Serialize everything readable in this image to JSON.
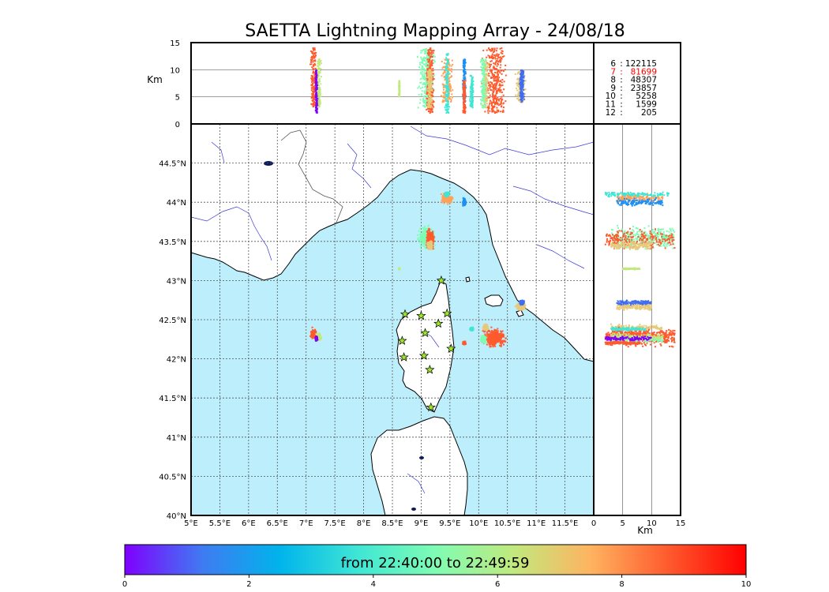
{
  "chart_data": {
    "type": "scatter",
    "title": "SAETTA Lightning Mapping Array - 24/08/18",
    "time_range_text": "from 22:40:00 to 22:49:59",
    "map": {
      "lon_range": [
        5,
        12
      ],
      "lat_range": [
        40,
        45
      ],
      "lon_ticks": [
        "5°E",
        "5.5°E",
        "6°E",
        "6.5°E",
        "7°E",
        "7.5°E",
        "8°E",
        "8.5°E",
        "9°E",
        "9.5°E",
        "10°E",
        "10.5°E",
        "11°E",
        "11.5°E"
      ],
      "lat_ticks": [
        "40°N",
        "40.5°N",
        "41°N",
        "41.5°N",
        "42°N",
        "42.5°N",
        "43°N",
        "43.5°N",
        "44°N",
        "44.5°N"
      ],
      "grid": true,
      "sea_color": "#bdeefc",
      "land_color": "#ffffff",
      "river_color": "#3b3bd8",
      "station_color": "#9be82a"
    },
    "altitude_top": {
      "ylabel": "Km",
      "ylim": [
        0,
        15
      ],
      "yticks": [
        "0",
        "5",
        "10",
        "15"
      ]
    },
    "altitude_side": {
      "xlabel": "Km",
      "xlim": [
        0,
        15
      ],
      "xticks": [
        "0",
        "5",
        "10",
        "15"
      ]
    },
    "legend": [
      {
        "num": "6",
        "sep": ":",
        "count": "122115",
        "color": "#000000"
      },
      {
        "num": "7",
        "sep": ":",
        "count": "81699",
        "color": "#ff0000"
      },
      {
        "num": "8",
        "sep": ":",
        "count": "48307",
        "color": "#000000"
      },
      {
        "num": "9",
        "sep": ":",
        "count": "23857",
        "color": "#000000"
      },
      {
        "num": "10",
        "sep": ":",
        "count": "5258",
        "color": "#000000"
      },
      {
        "num": "11",
        "sep": ":",
        "count": "1599",
        "color": "#000000"
      },
      {
        "num": "12",
        "sep": ":",
        "count": "205",
        "color": "#000000"
      }
    ],
    "colorbar": {
      "min": 0,
      "max": 10,
      "ticks": [
        "0",
        "2",
        "4",
        "6",
        "8",
        "10"
      ],
      "colors": [
        "#7f00ff",
        "#3f7bf2",
        "#00b4eb",
        "#3fe6d5",
        "#7ffcb3",
        "#c0e97e",
        "#ffb360",
        "#ff5a2d",
        "#ff0000"
      ]
    },
    "stations": [
      {
        "lon": 9.35,
        "lat": 43.0
      },
      {
        "lon": 8.72,
        "lat": 42.57
      },
      {
        "lon": 9.0,
        "lat": 42.55
      },
      {
        "lon": 9.45,
        "lat": 42.58
      },
      {
        "lon": 9.3,
        "lat": 42.45
      },
      {
        "lon": 9.07,
        "lat": 42.33
      },
      {
        "lon": 8.67,
        "lat": 42.23
      },
      {
        "lon": 9.52,
        "lat": 42.13
      },
      {
        "lon": 8.7,
        "lat": 42.02
      },
      {
        "lon": 9.05,
        "lat": 42.04
      },
      {
        "lon": 9.15,
        "lat": 41.86
      },
      {
        "lon": 9.17,
        "lat": 41.38
      }
    ],
    "clusters": [
      {
        "lon": 9.1,
        "lat": 43.55,
        "rlon": 0.15,
        "rlat": 0.15,
        "alt": [
          3,
          14
        ],
        "color": "#7ffcb3"
      },
      {
        "lon": 9.15,
        "lat": 43.52,
        "rlon": 0.08,
        "rlat": 0.14,
        "alt": [
          2,
          14
        ],
        "color": "#ff5a2d"
      },
      {
        "lon": 9.15,
        "lat": 43.45,
        "rlon": 0.05,
        "rlat": 0.05,
        "alt": [
          3,
          10
        ],
        "color": "#e7c97a"
      },
      {
        "lon": 9.45,
        "lat": 44.05,
        "rlon": 0.1,
        "rlat": 0.07,
        "alt": [
          4,
          12
        ],
        "color": "#ffa258"
      },
      {
        "lon": 9.75,
        "lat": 44.0,
        "rlon": 0.03,
        "rlat": 0.05,
        "alt": [
          4,
          12
        ],
        "color": "#1e90f5"
      },
      {
        "lon": 9.45,
        "lat": 44.1,
        "rlon": 0.04,
        "rlat": 0.03,
        "alt": [
          2,
          13
        ],
        "color": "#3fe6d5"
      },
      {
        "lon": 10.28,
        "lat": 42.27,
        "rlon": 0.2,
        "rlat": 0.13,
        "alt": [
          2,
          14
        ],
        "color": "#ff5a2d"
      },
      {
        "lon": 10.12,
        "lat": 42.4,
        "rlon": 0.05,
        "rlat": 0.04,
        "alt": [
          3,
          12
        ],
        "color": "#e7c97a"
      },
      {
        "lon": 10.08,
        "lat": 42.25,
        "rlon": 0.05,
        "rlat": 0.05,
        "alt": [
          3,
          12
        ],
        "color": "#7ffcb3"
      },
      {
        "lon": 10.73,
        "lat": 42.67,
        "rlon": 0.08,
        "rlat": 0.05,
        "alt": [
          4,
          10
        ],
        "color": "#e7c97a"
      },
      {
        "lon": 10.75,
        "lat": 42.72,
        "rlon": 0.04,
        "rlat": 0.03,
        "alt": [
          4,
          10
        ],
        "color": "#3f6df2"
      },
      {
        "lon": 7.13,
        "lat": 42.32,
        "rlon": 0.06,
        "rlat": 0.07,
        "alt": [
          3,
          14
        ],
        "color": "#ff5a2d"
      },
      {
        "lon": 7.22,
        "lat": 42.28,
        "rlon": 0.05,
        "rlat": 0.05,
        "alt": [
          3,
          12
        ],
        "color": "#c0e97e"
      },
      {
        "lon": 7.18,
        "lat": 42.26,
        "rlon": 0.02,
        "rlat": 0.03,
        "alt": [
          2,
          10
        ],
        "color": "#7f00ff"
      },
      {
        "lon": 9.75,
        "lat": 42.2,
        "rlon": 0.03,
        "rlat": 0.02,
        "alt": [
          2,
          8
        ],
        "color": "#ff5a2d"
      },
      {
        "lon": 9.88,
        "lat": 42.38,
        "rlon": 0.03,
        "rlat": 0.02,
        "alt": [
          3,
          9
        ],
        "color": "#3fe6d5"
      },
      {
        "lon": 8.62,
        "lat": 43.15,
        "rlon": 0.01,
        "rlat": 0.01,
        "alt": [
          5,
          8
        ],
        "color": "#c0e97e"
      }
    ]
  }
}
